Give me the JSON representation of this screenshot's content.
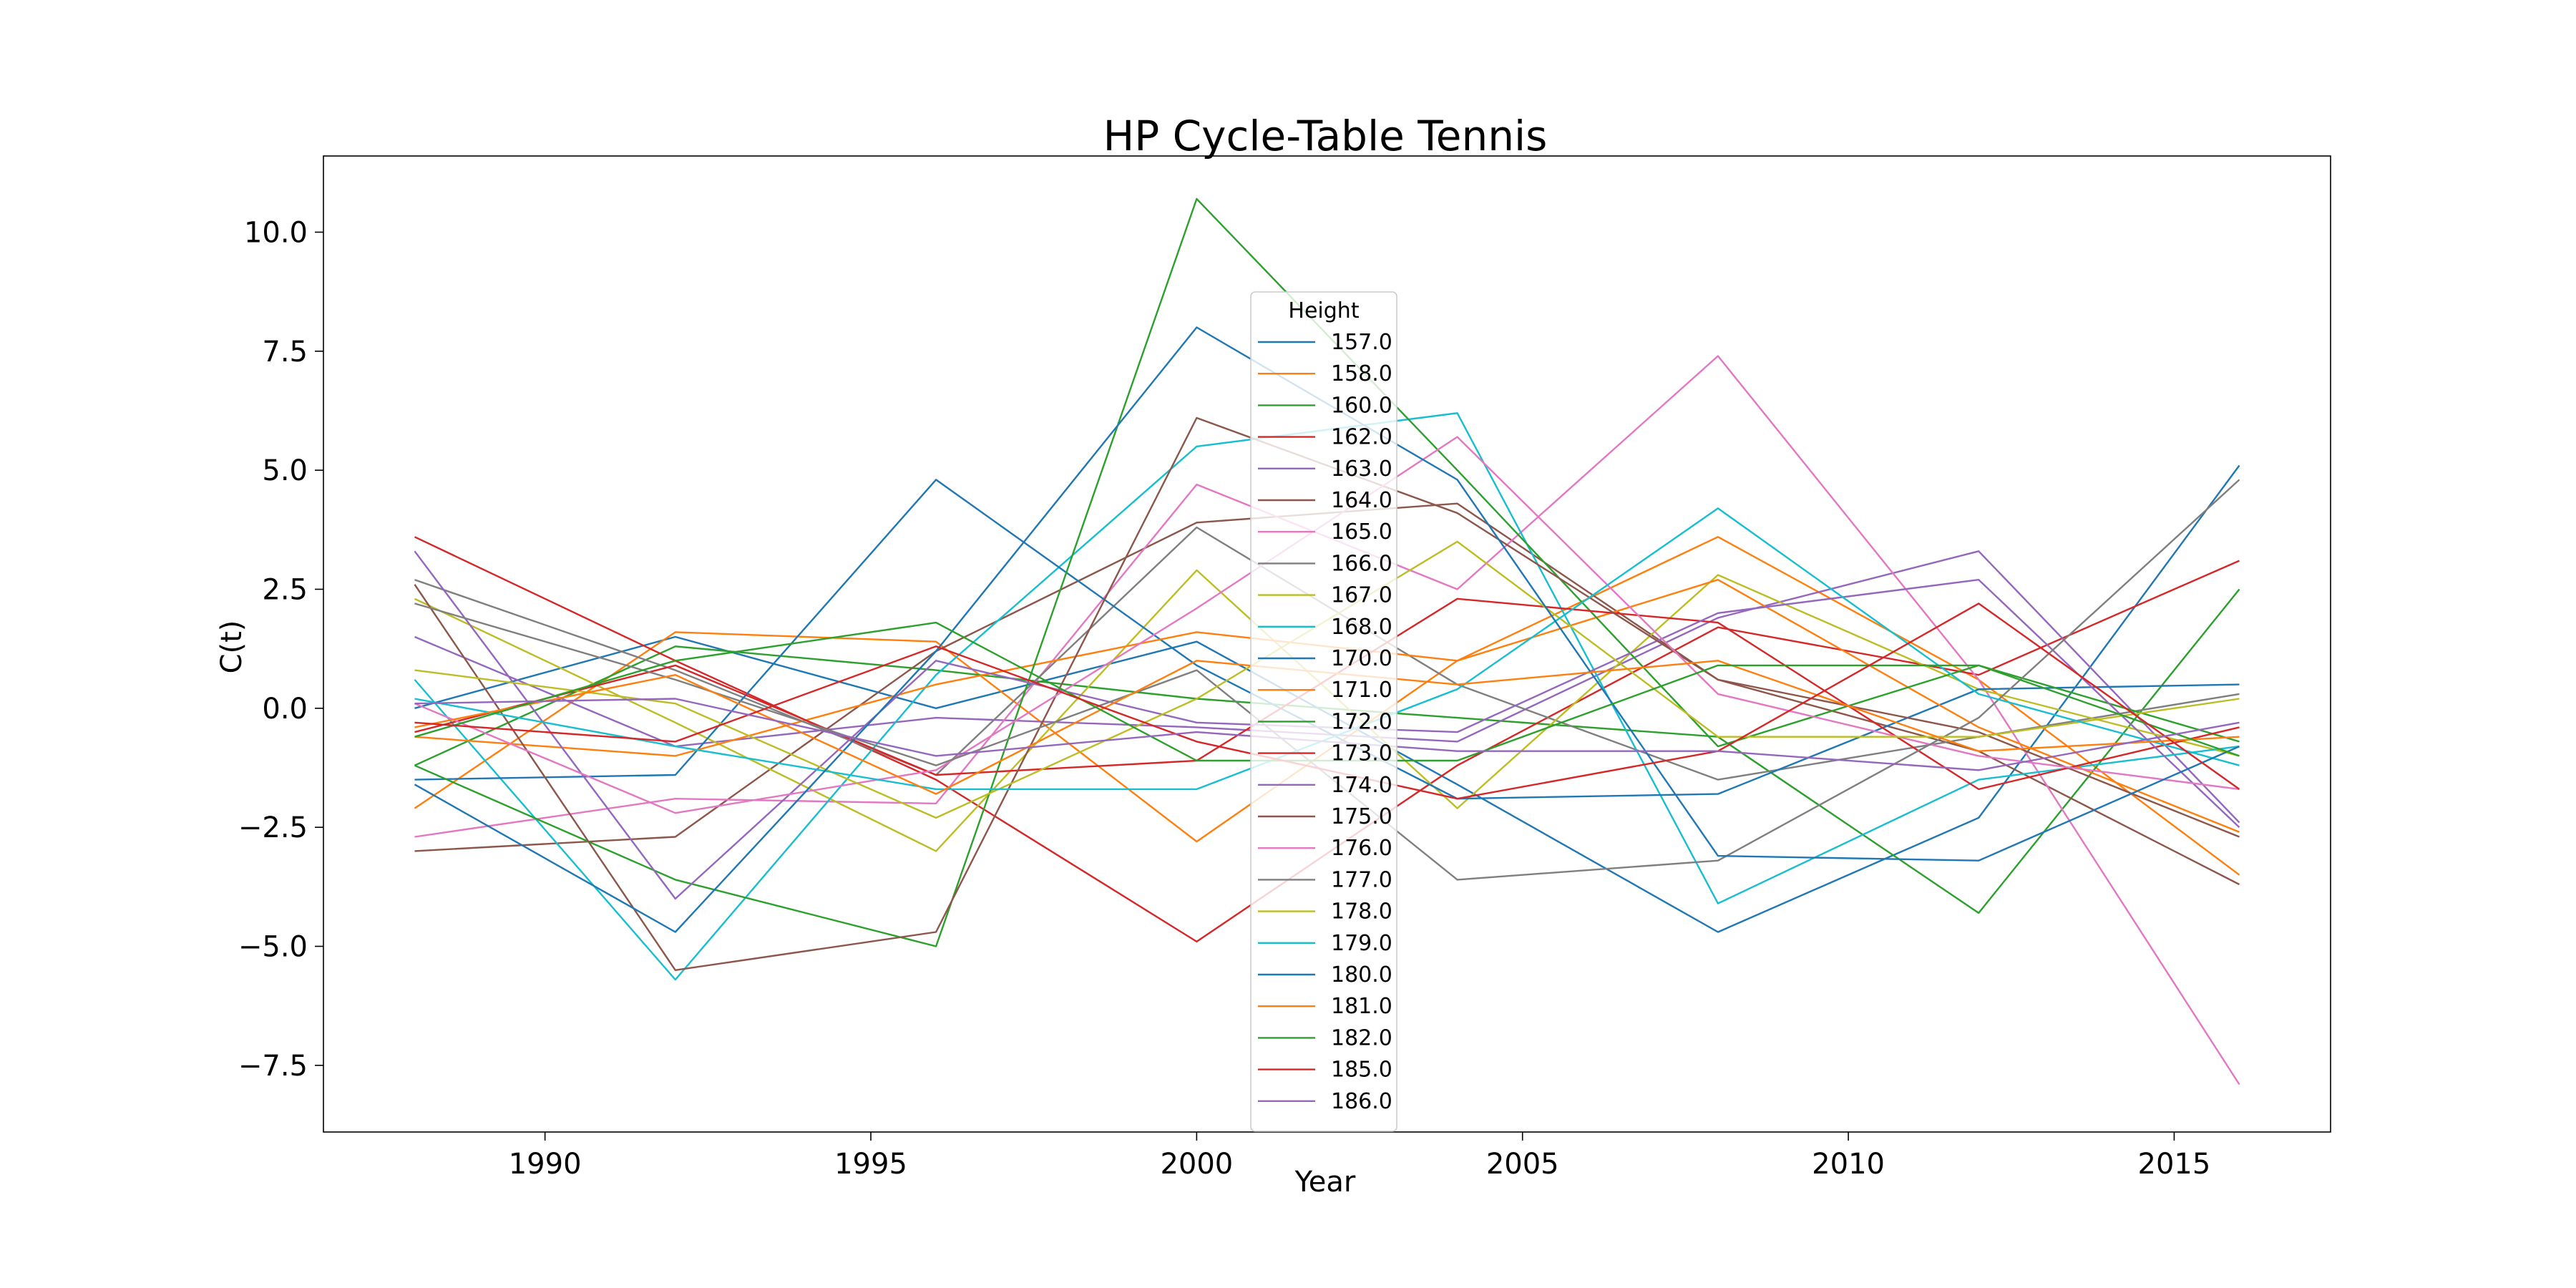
{
  "chart_data": {
    "type": "line",
    "title": "HP Cycle-Table Tennis",
    "xlabel": "Year",
    "ylabel": "C(t)",
    "xlim": [
      1986.6,
      2017.4
    ],
    "ylim": [
      -8.9,
      11.6
    ],
    "xticks": [
      1990,
      1995,
      2000,
      2005,
      2010,
      2015
    ],
    "yticks": [
      -7.5,
      -5.0,
      -2.5,
      0.0,
      2.5,
      5.0,
      7.5,
      10.0
    ],
    "grid": false,
    "legend": {
      "title": "Height",
      "placement": "center"
    },
    "x": [
      1988,
      1992,
      1996,
      2000,
      2004,
      2008,
      2012,
      2016
    ],
    "series": [
      {
        "name": "157.0",
        "color": "#1f77b4",
        "values": [
          0.0,
          1.5,
          0.0,
          1.4,
          -1.6,
          -4.7,
          -2.3,
          5.1
        ]
      },
      {
        "name": "158.0",
        "color": "#ff7f0e",
        "values": [
          -2.1,
          1.6,
          1.4,
          -2.8,
          1.0,
          3.6,
          0.6,
          -3.5
        ]
      },
      {
        "name": "160.0",
        "color": "#2ca02c",
        "values": [
          -1.2,
          1.3,
          0.8,
          0.2,
          -0.2,
          -0.6,
          -4.3,
          2.5
        ]
      },
      {
        "name": "162.0",
        "color": "#d62728",
        "values": [
          3.6,
          1.0,
          -1.5,
          -4.9,
          -1.2,
          1.7,
          0.7,
          3.1
        ]
      },
      {
        "name": "163.0",
        "color": "#9467bd",
        "values": [
          1.5,
          -0.8,
          -0.2,
          -0.4,
          -0.7,
          1.9,
          3.3,
          -2.4
        ]
      },
      {
        "name": "164.0",
        "color": "#8c564b",
        "values": [
          -3.0,
          -2.7,
          1.2,
          3.9,
          4.3,
          0.6,
          -0.9,
          -3.7
        ]
      },
      {
        "name": "165.0",
        "color": "#e377c2",
        "values": [
          -2.7,
          -1.9,
          -2.0,
          4.7,
          2.5,
          7.4,
          0.6,
          -7.9
        ]
      },
      {
        "name": "166.0",
        "color": "#7f7f7f",
        "values": [
          2.7,
          0.8,
          -1.4,
          3.8,
          0.5,
          -1.5,
          -0.6,
          0.3
        ]
      },
      {
        "name": "167.0",
        "color": "#bcbd22",
        "values": [
          2.3,
          -0.3,
          -3.0,
          2.9,
          -2.1,
          2.8,
          0.4,
          -1.0
        ]
      },
      {
        "name": "168.0",
        "color": "#17becf",
        "values": [
          0.6,
          -5.7,
          0.7,
          5.5,
          6.2,
          -4.1,
          -1.5,
          -0.8
        ]
      },
      {
        "name": "170.0",
        "color": "#1f77b4",
        "values": [
          -1.5,
          -1.4,
          4.8,
          0.9,
          -1.9,
          -1.8,
          0.4,
          0.5
        ]
      },
      {
        "name": "171.0",
        "color": "#ff7f0e",
        "values": [
          -0.6,
          -1.0,
          0.5,
          1.6,
          1.0,
          2.7,
          -0.4,
          -2.6
        ]
      },
      {
        "name": "172.0",
        "color": "#2ca02c",
        "values": [
          -1.2,
          -3.6,
          -5.0,
          10.7,
          5.0,
          -0.8,
          0.9,
          -0.7
        ]
      },
      {
        "name": "173.0",
        "color": "#d62728",
        "values": [
          -0.5,
          0.9,
          -1.4,
          -1.1,
          2.3,
          1.8,
          -1.7,
          -0.4
        ]
      },
      {
        "name": "174.0",
        "color": "#9467bd",
        "values": [
          3.3,
          -4.0,
          1.0,
          -0.3,
          -0.5,
          2.0,
          2.7,
          -2.5
        ]
      },
      {
        "name": "175.0",
        "color": "#8c564b",
        "values": [
          2.6,
          -5.5,
          -4.7,
          6.1,
          4.1,
          0.6,
          -0.5,
          -2.7
        ]
      },
      {
        "name": "176.0",
        "color": "#e377c2",
        "values": [
          0.1,
          -2.2,
          -1.3,
          2.1,
          5.7,
          0.3,
          -1.0,
          -1.7
        ]
      },
      {
        "name": "177.0",
        "color": "#7f7f7f",
        "values": [
          2.2,
          0.6,
          -1.2,
          0.8,
          -3.6,
          -3.2,
          -0.2,
          4.8
        ]
      },
      {
        "name": "178.0",
        "color": "#bcbd22",
        "values": [
          0.8,
          0.1,
          -2.3,
          0.2,
          3.5,
          -0.6,
          -0.6,
          0.2
        ]
      },
      {
        "name": "179.0",
        "color": "#17becf",
        "values": [
          0.2,
          -0.8,
          -1.7,
          -1.7,
          0.4,
          4.2,
          0.3,
          -1.2
        ]
      },
      {
        "name": "180.0",
        "color": "#1f77b4",
        "values": [
          -1.6,
          -4.7,
          1.2,
          8.0,
          4.8,
          -3.1,
          -3.2,
          -0.8
        ]
      },
      {
        "name": "181.0",
        "color": "#ff7f0e",
        "values": [
          -0.4,
          0.7,
          -1.8,
          1.0,
          0.5,
          1.0,
          -0.9,
          -0.6
        ]
      },
      {
        "name": "182.0",
        "color": "#2ca02c",
        "values": [
          -0.6,
          1.0,
          1.8,
          -1.1,
          -1.1,
          0.9,
          0.9,
          -1.0
        ]
      },
      {
        "name": "185.0",
        "color": "#d62728",
        "values": [
          -0.3,
          -0.7,
          1.3,
          -0.7,
          -1.9,
          -0.9,
          2.2,
          -1.7
        ]
      },
      {
        "name": "186.0",
        "color": "#9467bd",
        "values": [
          0.1,
          0.2,
          -1.0,
          -0.5,
          -0.9,
          -0.9,
          -1.3,
          -0.3
        ]
      }
    ]
  }
}
